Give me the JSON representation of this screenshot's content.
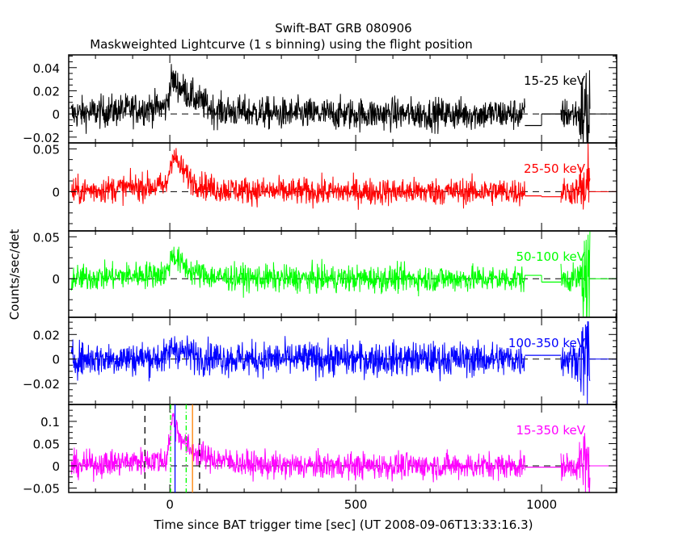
{
  "chart_data": {
    "type": "line",
    "title": "Swift-BAT GRB 080906",
    "subtitle": "Maskweighted Lightcurve (1 s binning) using the flight position",
    "xlabel": "Time since BAT trigger time [sec] (UT 2008-09-06T13:33:16.3)",
    "ylabel": "Counts/sec/det",
    "xlim": [
      -272,
      1202
    ],
    "x_ticks": [
      0,
      500,
      1000
    ],
    "x_tick_labels": [
      "0",
      "500",
      "1000"
    ],
    "data_gap": [
      955,
      1052
    ],
    "data_end": 1130,
    "series": [
      {
        "name": "15-25 keV",
        "color": "#000000",
        "ylim": [
          -0.025,
          0.051
        ],
        "y_ticks": [
          -0.02,
          0,
          0.02,
          0.04
        ],
        "y_tick_labels": [
          "−0.02",
          "0",
          "0.02",
          "0.04"
        ],
        "noise": 0.007,
        "profile": [
          [
            -265,
            0
          ],
          [
            -60,
            0.005
          ],
          [
            -10,
            0.006
          ],
          [
            5,
            0.03
          ],
          [
            20,
            0.025
          ],
          [
            60,
            0.015
          ],
          [
            120,
            0.003
          ],
          [
            300,
            0
          ],
          [
            1130,
            0
          ]
        ],
        "gap_steps": [
          [
            955,
            1000,
            -0.01
          ],
          [
            1000,
            1052,
            0
          ]
        ]
      },
      {
        "name": "25-50 keV",
        "color": "#ff0000",
        "ylim": [
          -0.046,
          0.057
        ],
        "y_ticks": [
          0,
          0.05
        ],
        "y_tick_labels": [
          "0",
          "0.05"
        ],
        "noise": 0.008,
        "profile": [
          [
            -265,
            0
          ],
          [
            -60,
            0.006
          ],
          [
            -10,
            0.006
          ],
          [
            8,
            0.045
          ],
          [
            25,
            0.03
          ],
          [
            60,
            0.012
          ],
          [
            120,
            0.003
          ],
          [
            300,
            0
          ],
          [
            1130,
            0
          ]
        ],
        "gap_steps": [
          [
            955,
            1000,
            -0.005
          ],
          [
            1000,
            1052,
            -0.006
          ]
        ]
      },
      {
        "name": "50-100 keV",
        "color": "#00ff00",
        "ylim": [
          -0.046,
          0.057
        ],
        "y_ticks": [
          0,
          0.05
        ],
        "y_tick_labels": [
          "0",
          "0.05"
        ],
        "noise": 0.008,
        "profile": [
          [
            -265,
            0
          ],
          [
            -60,
            0.005
          ],
          [
            -10,
            0.006
          ],
          [
            8,
            0.03
          ],
          [
            25,
            0.02
          ],
          [
            60,
            0.008
          ],
          [
            120,
            0.002
          ],
          [
            300,
            0
          ],
          [
            1130,
            0
          ]
        ],
        "gap_steps": [
          [
            955,
            1000,
            0.004
          ],
          [
            1000,
            1052,
            -0.004
          ]
        ]
      },
      {
        "name": "100-350 keV",
        "color": "#0000ff",
        "ylim": [
          -0.037,
          0.034
        ],
        "y_ticks": [
          -0.02,
          0,
          0.02
        ],
        "y_tick_labels": [
          "−0.02",
          "0",
          "0.02"
        ],
        "noise": 0.007,
        "profile": [
          [
            -265,
            0
          ],
          [
            -10,
            0.001
          ],
          [
            8,
            0.01
          ],
          [
            30,
            0.006
          ],
          [
            80,
            0.002
          ],
          [
            200,
            0
          ],
          [
            1130,
            0
          ]
        ],
        "gap_steps": [
          [
            955,
            1000,
            0.003
          ],
          [
            1000,
            1052,
            0.003
          ]
        ]
      },
      {
        "name": "15-350 keV",
        "color": "#ff00ff",
        "ylim": [
          -0.06,
          0.138
        ],
        "y_ticks": [
          -0.05,
          0,
          0.05,
          0.1
        ],
        "y_tick_labels": [
          "−0.05",
          "0",
          "0.05",
          "0.1"
        ],
        "noise": 0.015,
        "profile": [
          [
            -265,
            0
          ],
          [
            -60,
            0.012
          ],
          [
            -10,
            0.012
          ],
          [
            8,
            0.11
          ],
          [
            25,
            0.07
          ],
          [
            50,
            0.04
          ],
          [
            100,
            0.018
          ],
          [
            200,
            0.004
          ],
          [
            300,
            0
          ],
          [
            1130,
            0
          ]
        ],
        "gap_steps": [
          [
            955,
            1000,
            -0.003
          ],
          [
            1000,
            1052,
            -0.003
          ]
        ]
      }
    ],
    "markers": [
      {
        "t": -67,
        "color": "#000000",
        "style": "dashed"
      },
      {
        "t": 2,
        "color": "#00ff00",
        "style": "dashdot"
      },
      {
        "t": 14,
        "color": "#0000ff",
        "style": "solid"
      },
      {
        "t": 44,
        "color": "#00ff00",
        "style": "dashdot"
      },
      {
        "t": 61,
        "color": "#ff8000",
        "style": "solid"
      },
      {
        "t": 80,
        "color": "#000000",
        "style": "dashed"
      }
    ]
  }
}
